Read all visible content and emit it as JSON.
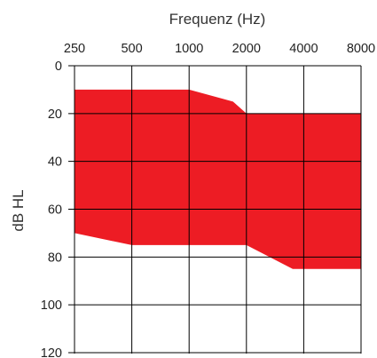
{
  "chart_data": {
    "type": "area",
    "title": "",
    "xlabel": "Frequenz (Hz)",
    "ylabel": "dB HL",
    "x_scale": "log2",
    "x_ticks": [
      250,
      500,
      1000,
      2000,
      4000,
      8000
    ],
    "x_tick_labels": [
      "250",
      "500",
      "1000",
      "2000",
      "4000",
      "8000"
    ],
    "y_ticks": [
      0,
      20,
      40,
      60,
      80,
      100,
      120
    ],
    "y_tick_labels": [
      "0",
      "20",
      "40",
      "60",
      "80",
      "100",
      "120"
    ],
    "ylim": [
      0,
      120
    ],
    "y_inverted": true,
    "grid": true,
    "series": [
      {
        "color": "#ed1c24",
        "upper": {
          "x": [
            250,
            1000,
            1700,
            2000,
            8000
          ],
          "y": [
            10,
            10,
            15,
            20,
            20
          ]
        },
        "lower": {
          "x": [
            250,
            500,
            1000,
            2000,
            3500,
            8000
          ],
          "y": [
            70,
            75,
            75,
            75,
            85,
            85
          ]
        }
      }
    ]
  }
}
